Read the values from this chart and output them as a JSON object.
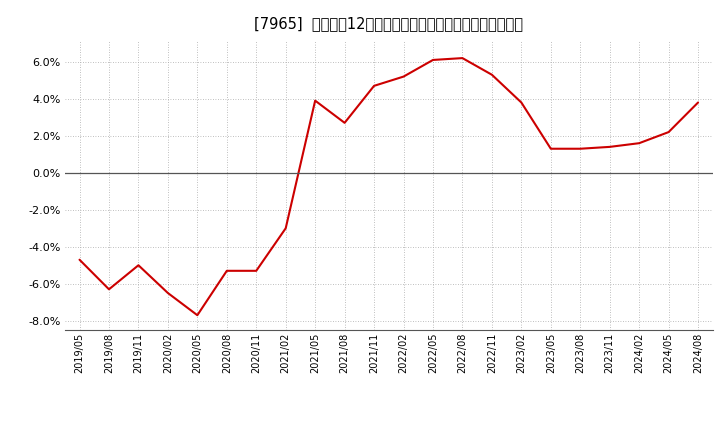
{
  "title": "[7965]  売上高の12か月移動合計の対前年同期増減率の推移",
  "line_color": "#cc0000",
  "background_color": "#ffffff",
  "plot_background_color": "#ffffff",
  "grid_color": "#aaaaaa",
  "ylim": [
    -0.085,
    0.072
  ],
  "yticks": [
    -0.08,
    -0.06,
    -0.04,
    -0.02,
    0.0,
    0.02,
    0.04,
    0.06
  ],
  "dates": [
    "2019/05",
    "2019/08",
    "2019/11",
    "2020/02",
    "2020/05",
    "2020/08",
    "2020/11",
    "2021/02",
    "2021/05",
    "2021/08",
    "2021/11",
    "2022/02",
    "2022/05",
    "2022/08",
    "2022/11",
    "2023/02",
    "2023/05",
    "2023/08",
    "2023/11",
    "2024/02",
    "2024/05",
    "2024/08"
  ],
  "values": [
    -0.047,
    -0.063,
    -0.05,
    -0.065,
    -0.077,
    -0.053,
    -0.053,
    -0.03,
    0.039,
    0.027,
    0.047,
    0.052,
    0.061,
    0.062,
    0.053,
    0.038,
    0.013,
    0.013,
    0.014,
    0.016,
    0.022,
    0.038
  ]
}
